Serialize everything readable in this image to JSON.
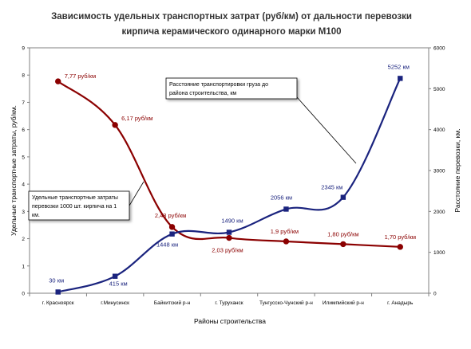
{
  "chart_data": {
    "type": "line",
    "title_line1": "Зависимость удельных транспортных затрат (руб/км) от дальности перевозки",
    "title_line2": "кирпича керамического одинарного марки М100",
    "xlabel": "Районы строительства",
    "ylabel_left": "Удельные транспортные затраты, руб/км.",
    "ylabel_right": "Расстояние перевозки, км.",
    "categories": [
      "г. Красноярск",
      "г.Минусинск",
      "Байкитский р-н",
      "г. Туруханск",
      "Тунгусско-Чунский р-н",
      "Илимпийский р-н",
      "г. Анадырь"
    ],
    "ylim_left": [
      0,
      9
    ],
    "yticks_left": [
      "0",
      "1",
      "2",
      "3",
      "4",
      "5",
      "6",
      "7",
      "8",
      "9"
    ],
    "ylim_right": [
      0,
      6000
    ],
    "yticks_right": [
      "0",
      "1000",
      "2000",
      "3000",
      "4000",
      "5000",
      "6000"
    ],
    "series": [
      {
        "axis": "left",
        "color": "#8b0000",
        "marker": "circle",
        "values": [
          7.77,
          6.17,
          2.43,
          2.03,
          1.9,
          1.8,
          1.7
        ],
        "labels": [
          "7,77 руб/км",
          "6,17 руб/км",
          "2,43 руб/км",
          "2,03 руб/км",
          "1,9 руб/км",
          "1,80 руб/км",
          "1,70 руб/км"
        ]
      },
      {
        "axis": "right",
        "color": "#1a237e",
        "marker": "square",
        "values": [
          30,
          415,
          1448,
          1490,
          2056,
          2345,
          5252
        ],
        "labels": [
          "30 км",
          "415 км",
          "1448 км",
          "1490 км",
          "2056 км",
          "2345 км",
          "5252 км"
        ]
      }
    ],
    "annotations": [
      {
        "lines": [
          "Расстояние транспортировки груза до",
          "района строительства, км"
        ]
      },
      {
        "lines": [
          "Удельные транспортные затраты",
          "перевозки 1000 шт. кирпича на 1",
          "км."
        ]
      }
    ],
    "grid": false,
    "legend": "none"
  }
}
